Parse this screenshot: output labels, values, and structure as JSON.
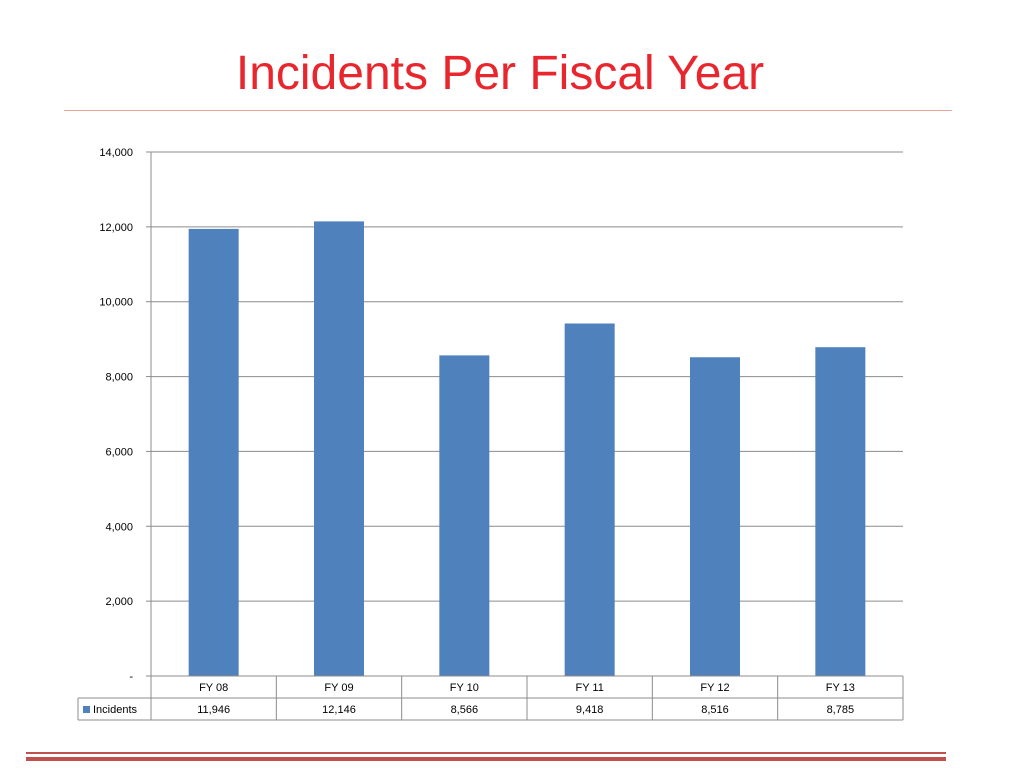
{
  "slide": {
    "title": "Incidents Per Fiscal Year"
  },
  "colors": {
    "title": "#e8262e",
    "bar": "#4f81bd",
    "rule": "#c0504d"
  },
  "chart_data": {
    "type": "bar",
    "title": "",
    "xlabel": "",
    "ylabel": "",
    "categories": [
      "FY 08",
      "FY 09",
      "FY 10",
      "FY 11",
      "FY 12",
      "FY 13"
    ],
    "series": [
      {
        "name": "Incidents",
        "values": [
          11946,
          12146,
          8566,
          9418,
          8516,
          8785
        ],
        "value_labels": [
          "11,946",
          "12,146",
          "8,566",
          "9,418",
          "8,516",
          "8,785"
        ]
      }
    ],
    "ylim": [
      0,
      14000
    ],
    "yticks": [
      0,
      2000,
      4000,
      6000,
      8000,
      10000,
      12000,
      14000
    ],
    "ytick_labels": [
      "-",
      "2,000",
      "4,000",
      "6,000",
      "8,000",
      "10,000",
      "12,000",
      "14,000"
    ],
    "grid": true,
    "legend": "data-table",
    "data_table": true
  }
}
